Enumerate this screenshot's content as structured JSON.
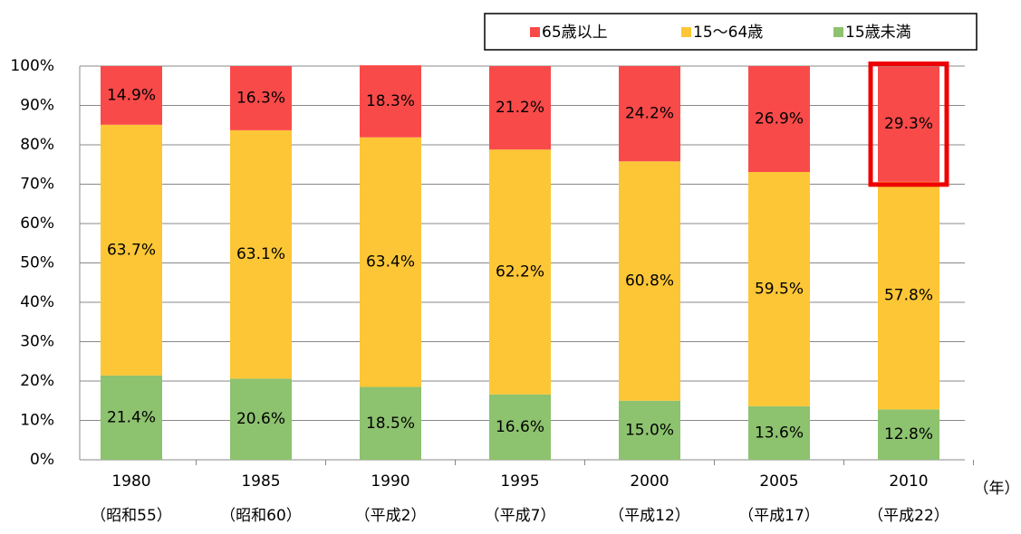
{
  "chart_data": {
    "type": "stacked-bar",
    "categories": [
      "1980",
      "1985",
      "1990",
      "1995",
      "2000",
      "2005",
      "2010"
    ],
    "era_labels": [
      "（昭和55）",
      "（昭和60）",
      "（平成2）",
      "（平成7）",
      "（平成12）",
      "（平成17）",
      "（平成22）"
    ],
    "x_unit_label": "（年）",
    "series": [
      {
        "name": "65歳以上",
        "color": "#f94a4a",
        "values": [
          14.9,
          16.3,
          18.3,
          21.2,
          24.2,
          26.9,
          29.3
        ],
        "value_labels": [
          "14.9%",
          "16.3%",
          "18.3%",
          "21.2%",
          "24.2%",
          "26.9%",
          "29.3%"
        ]
      },
      {
        "name": "15〜64歳",
        "color": "#fcc636",
        "values": [
          63.7,
          63.1,
          63.4,
          62.2,
          60.8,
          59.5,
          57.8
        ],
        "value_labels": [
          "63.7%",
          "63.1%",
          "63.4%",
          "62.2%",
          "60.8%",
          "59.5%",
          "57.8%"
        ]
      },
      {
        "name": "15歳未満",
        "color": "#8dc26f",
        "values": [
          21.4,
          20.6,
          18.5,
          16.6,
          15.0,
          13.6,
          12.8
        ],
        "value_labels": [
          "21.4%",
          "20.6%",
          "18.5%",
          "16.6%",
          "15.0%",
          "13.6%",
          "12.8%"
        ]
      }
    ],
    "ylim": [
      0,
      100
    ],
    "yticks": [
      {
        "value": 0,
        "label": "0%"
      },
      {
        "value": 10,
        "label": "10%"
      },
      {
        "value": 20,
        "label": "20%"
      },
      {
        "value": 30,
        "label": "30%"
      },
      {
        "value": 40,
        "label": "40%"
      },
      {
        "value": 50,
        "label": "50%"
      },
      {
        "value": 60,
        "label": "60%"
      },
      {
        "value": 70,
        "label": "70%"
      },
      {
        "value": 80,
        "label": "80%"
      },
      {
        "value": 90,
        "label": "90%"
      },
      {
        "value": 100,
        "label": "100%"
      }
    ],
    "grid": true
  }
}
